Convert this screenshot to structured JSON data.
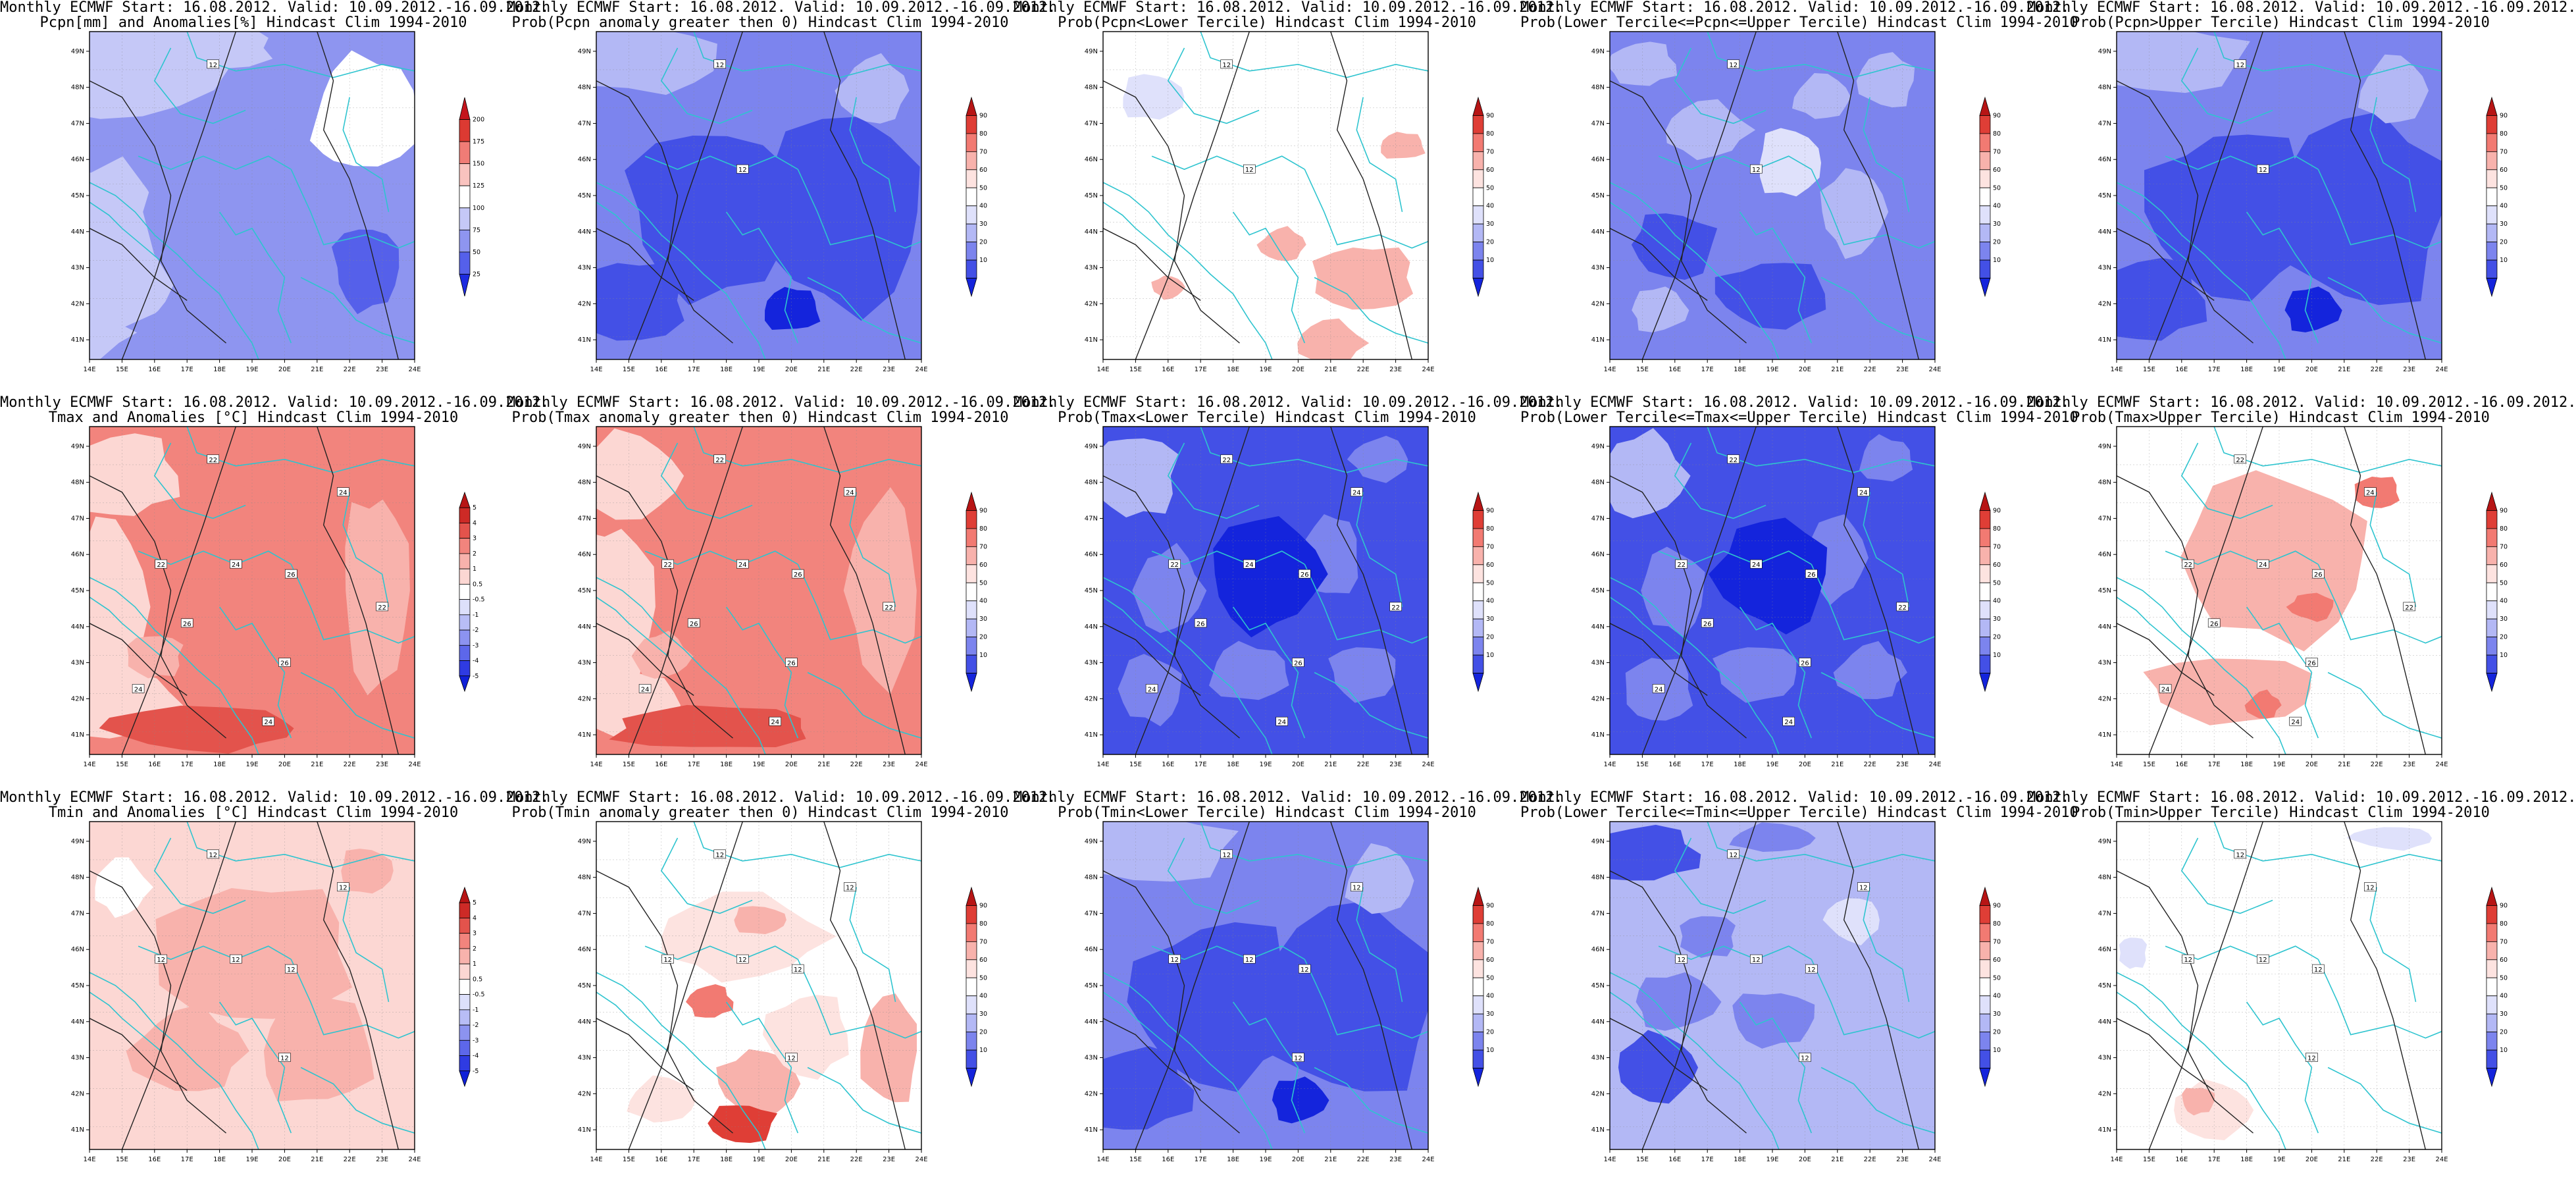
{
  "lon_ticks": [
    "14E",
    "15E",
    "16E",
    "17E",
    "18E",
    "19E",
    "20E",
    "21E",
    "22E",
    "23E",
    "24E"
  ],
  "lat_ticks": [
    "49N",
    "48N",
    "47N",
    "46N",
    "45N",
    "44N",
    "43N",
    "42N",
    "41N"
  ],
  "panels": [
    {
      "row": 0,
      "col": 0,
      "title1": "Monthly ECMWF Start: 16.08.2012. Valid: 10.09.2012.-16.09.2012.",
      "title2": "Pcpn[mm] and Anomalies[%] Hindcast Clim 1994-2010",
      "field": "pcpn_anom",
      "scale": "pcpn",
      "contours": [
        "12"
      ]
    },
    {
      "row": 0,
      "col": 1,
      "title1": "Monthly ECMWF Start: 16.08.2012. Valid: 10.09.2012.-16.09.2012.",
      "title2": "Prob(Pcpn anomaly greater then 0) Hindcast Clim 1994-2010",
      "field": "blue_med",
      "scale": "prob",
      "contours": [
        "12",
        "12"
      ]
    },
    {
      "row": 0,
      "col": 2,
      "title1": "Monthly ECMWF Start: 16.08.2012. Valid: 10.09.2012.-16.09.2012.",
      "title2": "Prob(Pcpn<Lower Tercile) Hindcast Clim 1994-2010",
      "field": "white_pink",
      "scale": "prob",
      "contours": [
        "12",
        "12"
      ]
    },
    {
      "row": 0,
      "col": 3,
      "title1": "Monthly ECMWF Start: 16.08.2012. Valid: 10.09.2012.-16.09.2012.",
      "title2": "Prob(Lower Tercile<=Pcpn<=Upper Tercile) Hindcast Clim 1994-2010",
      "field": "blue_patchy",
      "scale": "prob",
      "contours": [
        "12",
        "12"
      ]
    },
    {
      "row": 0,
      "col": 4,
      "title1": "Monthly ECMWF Start: 16.08.2012. Valid: 10.09.2012.-16.09.2012.",
      "title2": "Prob(Pcpn>Upper Tercile) Hindcast Clim 1994-2010",
      "field": "blue_med",
      "scale": "prob",
      "contours": [
        "12",
        "12"
      ]
    },
    {
      "row": 1,
      "col": 0,
      "title1": "Monthly ECMWF Start: 16.08.2012. Valid: 10.09.2012.-16.09.2012.",
      "title2": "Tmax and Anomalies [°C] Hindcast Clim 1994-2010",
      "field": "red_warm",
      "scale": "temp",
      "contours": [
        "22",
        "24",
        "22",
        "26",
        "24",
        "26",
        "24",
        "22",
        "26",
        "24"
      ]
    },
    {
      "row": 1,
      "col": 1,
      "title1": "Monthly ECMWF Start: 16.08.2012. Valid: 10.09.2012.-16.09.2012.",
      "title2": "Prob(Tmax anomaly greater then 0) Hindcast Clim 1994-2010",
      "field": "red_warm",
      "scale": "prob",
      "contours": [
        "22",
        "24",
        "22",
        "26",
        "24",
        "26",
        "24",
        "22",
        "26",
        "24"
      ]
    },
    {
      "row": 1,
      "col": 2,
      "title1": "Monthly ECMWF Start: 16.08.2012. Valid: 10.09.2012.-16.09.2012.",
      "title2": "Prob(Tmax<Lower Tercile) Hindcast Clim 1994-2010",
      "field": "blue_dark",
      "scale": "prob",
      "contours": [
        "22",
        "24",
        "22",
        "26",
        "24",
        "26",
        "24",
        "22",
        "26",
        "24"
      ]
    },
    {
      "row": 1,
      "col": 3,
      "title1": "Monthly ECMWF Start: 16.08.2012. Valid: 10.09.2012.-16.09.2012.",
      "title2": "Prob(Lower Tercile<=Tmax<=Upper Tercile) Hindcast Clim 1994-2010",
      "field": "blue_dark",
      "scale": "prob",
      "contours": [
        "22",
        "24",
        "22",
        "26",
        "24",
        "26",
        "24",
        "22",
        "26",
        "24"
      ]
    },
    {
      "row": 1,
      "col": 4,
      "title1": "Monthly ECMWF Start: 16.08.2012. Valid: 10.09.2012.-16.09.2012.",
      "title2": "Prob(Tmax>Upper Tercile) Hindcast Clim 1994-2010",
      "field": "pink_light",
      "scale": "prob",
      "contours": [
        "22",
        "24",
        "22",
        "26",
        "24",
        "26",
        "24",
        "22",
        "26",
        "24"
      ]
    },
    {
      "row": 2,
      "col": 0,
      "title1": "Monthly ECMWF Start: 16.08.2012. Valid: 10.09.2012.-16.09.2012.",
      "title2": "Tmin and Anomalies [°C] Hindcast Clim 1994-2010",
      "field": "red_light",
      "scale": "temp",
      "contours": [
        "12",
        "12",
        "12",
        "12",
        "12",
        "12"
      ]
    },
    {
      "row": 2,
      "col": 1,
      "title1": "Monthly ECMWF Start: 16.08.2012. Valid: 10.09.2012.-16.09.2012.",
      "title2": "Prob(Tmin anomaly greater then 0) Hindcast Clim 1994-2010",
      "field": "pink_patchy",
      "scale": "prob",
      "contours": [
        "12",
        "12",
        "12",
        "12",
        "12",
        "12"
      ]
    },
    {
      "row": 2,
      "col": 2,
      "title1": "Monthly ECMWF Start: 16.08.2012. Valid: 10.09.2012.-16.09.2012.",
      "title2": "Prob(Tmin<Lower Tercile) Hindcast Clim 1994-2010",
      "field": "blue_med",
      "scale": "prob",
      "contours": [
        "12",
        "12",
        "12",
        "12",
        "12",
        "12"
      ]
    },
    {
      "row": 2,
      "col": 3,
      "title1": "Monthly ECMWF Start: 16.08.2012. Valid: 10.09.2012.-16.09.2012.",
      "title2": "Prob(Lower Tercile<=Tmin<=Upper Tercile) Hindcast Clim 1994-2010",
      "field": "blue_light",
      "scale": "prob",
      "contours": [
        "12",
        "12",
        "12",
        "12",
        "12",
        "12"
      ]
    },
    {
      "row": 2,
      "col": 4,
      "title1": "Monthly ECMWF Start: 16.08.2012. Valid: 10.09.2012.-16.09.2012.",
      "title2": "Prob(Tmin>Upper Tercile) Hindcast Clim 1994-2010",
      "field": "white_pink_low",
      "scale": "prob",
      "contours": [
        "12",
        "12",
        "12",
        "12",
        "12",
        "12"
      ]
    }
  ],
  "colorbar_scales": {
    "pcpn": {
      "ticks": [
        "200",
        "175",
        "150",
        "125",
        "100",
        "75",
        "50",
        "25"
      ],
      "colors": [
        "#c4151c",
        "#dc3a32",
        "#f07c76",
        "#f9c3bf",
        "#ffffff",
        "#c5c8f7",
        "#8e95f0",
        "#5560ea",
        "#1d2be0"
      ]
    },
    "prob": {
      "ticks": [
        "90",
        "80",
        "70",
        "60",
        "50",
        "40",
        "30",
        "20",
        "10"
      ],
      "colors": [
        "#b71515",
        "#df3e36",
        "#f27a72",
        "#f8b2ac",
        "#fde3e0",
        "#ffffff",
        "#dfe1fb",
        "#b3b8f5",
        "#7c84ee",
        "#4350e6",
        "#1424dc"
      ]
    },
    "temp": {
      "ticks": [
        "5",
        "4",
        "3",
        "2",
        "1",
        "0.5",
        "-0.5",
        "-1",
        "-2",
        "-3",
        "-4",
        "-5"
      ],
      "colors": [
        "#b71515",
        "#cd2a26",
        "#e3534c",
        "#f2847d",
        "#f8b2ac",
        "#fcd7d3",
        "#ffffff",
        "#dde0fb",
        "#b8bdf6",
        "#8c93f0",
        "#5d67ea",
        "#2f3be2",
        "#1020d8"
      ]
    }
  },
  "colors": {
    "coast": "#2ec4cf",
    "contour": "#222222",
    "map_border": "#000000"
  }
}
